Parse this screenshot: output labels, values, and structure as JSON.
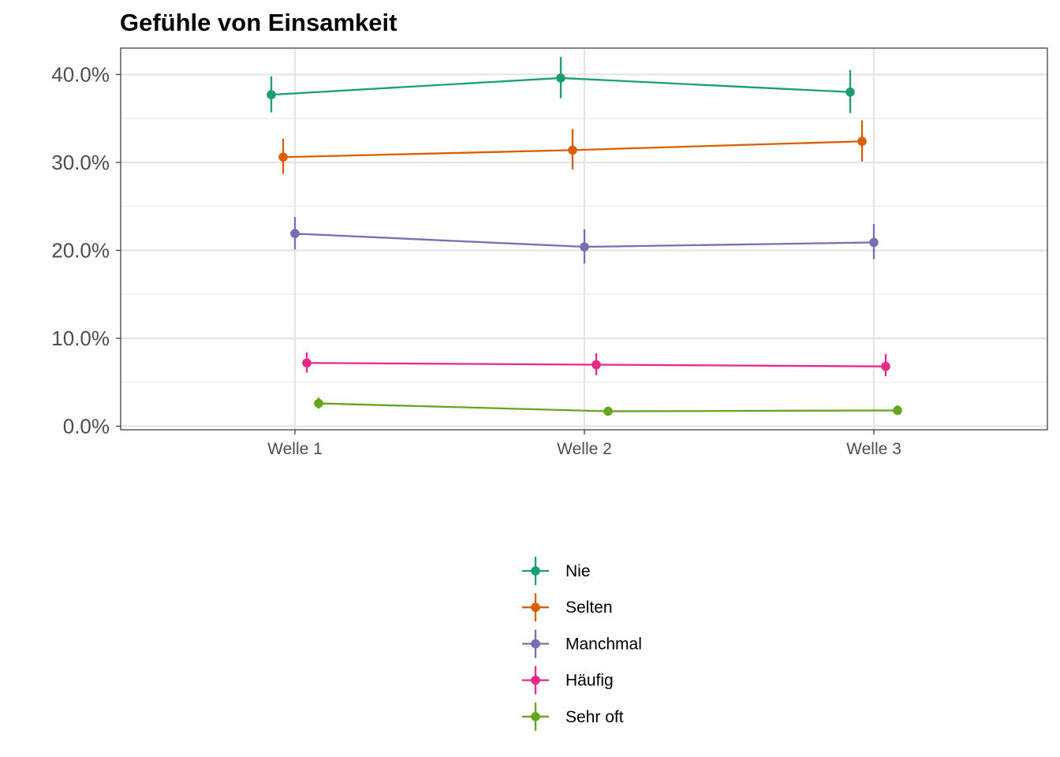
{
  "chart_data": {
    "type": "line",
    "title": "Gefühle von Einsamkeit",
    "xlabel": "",
    "ylabel": "",
    "categories": [
      "Welle 1",
      "Welle 2",
      "Welle 3"
    ],
    "y_ticks": [
      "0.0%",
      "10.0%",
      "20.0%",
      "30.0%",
      "40.0%"
    ],
    "ylim": [
      -0.4,
      43.0
    ],
    "grid": true,
    "error_bars": true,
    "legend_position": "bottom",
    "series": [
      {
        "name": "Nie",
        "color": "#1B9E77",
        "values": [
          37.7,
          39.6,
          38.0
        ],
        "lower": [
          35.7,
          37.3,
          35.6
        ],
        "upper": [
          39.8,
          42.0,
          40.5
        ]
      },
      {
        "name": "Selten",
        "color": "#D95F02",
        "values": [
          30.6,
          31.4,
          32.4
        ],
        "lower": [
          28.7,
          29.2,
          30.1
        ],
        "upper": [
          32.7,
          33.8,
          34.8
        ]
      },
      {
        "name": "Manchmal",
        "color": "#7570B3",
        "values": [
          21.9,
          20.4,
          20.9
        ],
        "lower": [
          20.1,
          18.5,
          19.0
        ],
        "upper": [
          23.8,
          22.4,
          23.0
        ]
      },
      {
        "name": "Häufig",
        "color": "#E7298A",
        "values": [
          7.2,
          7.0,
          6.8
        ],
        "lower": [
          6.1,
          5.8,
          5.7
        ],
        "upper": [
          8.4,
          8.3,
          8.2
        ]
      },
      {
        "name": "Sehr oft",
        "color": "#66A61E",
        "values": [
          2.6,
          1.7,
          1.8
        ],
        "lower": [
          2.0,
          1.3,
          1.3
        ],
        "upper": [
          3.3,
          2.2,
          2.4
        ]
      }
    ]
  }
}
